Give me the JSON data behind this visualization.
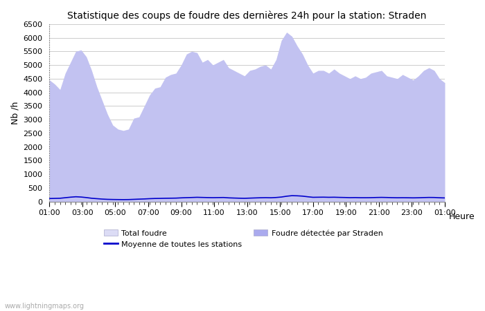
{
  "title": "Statistique des coups de foudre des dernières 24h pour la station: Straden",
  "ylabel": "Nb /h",
  "xlabel": "Heure",
  "watermark": "www.lightningmaps.org",
  "ylim": [
    0,
    6500
  ],
  "yticks": [
    0,
    500,
    1000,
    1500,
    2000,
    2500,
    3000,
    3500,
    4000,
    4500,
    5000,
    5500,
    6000,
    6500
  ],
  "xtick_labels": [
    "01:00",
    "03:00",
    "05:00",
    "07:00",
    "09:00",
    "11:00",
    "13:00",
    "15:00",
    "17:00",
    "19:00",
    "21:00",
    "23:00",
    "01:00"
  ],
  "color_total": "#dcdcf5",
  "color_station": "#aaaaee",
  "color_avg_line": "#0000cc",
  "background": "#ffffff",
  "grid_color": "#cccccc",
  "legend_total_label": "Total foudre",
  "legend_avg_label": "Moyenne de toutes les stations",
  "legend_station_label": "Foudre détectée par Straden",
  "total_foudre": [
    4450,
    4300,
    4100,
    4700,
    5100,
    5500,
    5550,
    5300,
    4800,
    4200,
    3700,
    3200,
    2800,
    2650,
    2600,
    2650,
    3050,
    3100,
    3500,
    3900,
    4150,
    4200,
    4550,
    4650,
    4700,
    5000,
    5400,
    5500,
    5450,
    5100,
    5200,
    5000,
    5100,
    5200,
    4900,
    4800,
    4700,
    4600,
    4800,
    4850,
    4950,
    5000,
    4850,
    5200,
    5900,
    6200,
    6050,
    5700,
    5400,
    5000,
    4700,
    4800,
    4800,
    4700,
    4850,
    4700,
    4600,
    4500,
    4600,
    4500,
    4550,
    4700,
    4750,
    4800,
    4600,
    4550,
    4500,
    4650,
    4550,
    4450,
    4600,
    4800,
    4900,
    4800,
    4500,
    4350
  ],
  "station_foudre": [
    4450,
    4300,
    4100,
    4700,
    5100,
    5500,
    5550,
    5300,
    4800,
    4200,
    3700,
    3200,
    2800,
    2650,
    2600,
    2650,
    3050,
    3100,
    3500,
    3900,
    4150,
    4200,
    4550,
    4650,
    4700,
    5000,
    5400,
    5500,
    5450,
    5100,
    5200,
    5000,
    5100,
    5200,
    4900,
    4800,
    4700,
    4600,
    4800,
    4850,
    4950,
    5000,
    4850,
    5200,
    5900,
    6200,
    6050,
    5700,
    5400,
    5000,
    4700,
    4800,
    4800,
    4700,
    4850,
    4700,
    4600,
    4500,
    4600,
    4500,
    4550,
    4700,
    4750,
    4800,
    4600,
    4550,
    4500,
    4650,
    4550,
    4450,
    4600,
    4800,
    4900,
    4800,
    4500,
    4350
  ],
  "avg_line": [
    110,
    115,
    120,
    140,
    160,
    175,
    165,
    145,
    120,
    105,
    90,
    80,
    75,
    72,
    70,
    72,
    80,
    88,
    95,
    105,
    112,
    115,
    120,
    122,
    125,
    135,
    142,
    148,
    155,
    150,
    145,
    142,
    145,
    148,
    135,
    128,
    122,
    118,
    125,
    132,
    138,
    142,
    138,
    148,
    165,
    195,
    215,
    210,
    198,
    175,
    155,
    158,
    160,
    155,
    158,
    152,
    148,
    142,
    145,
    140,
    140,
    142,
    148,
    152,
    148,
    142,
    138,
    140,
    138,
    135,
    138,
    145,
    150,
    148,
    138,
    132
  ]
}
